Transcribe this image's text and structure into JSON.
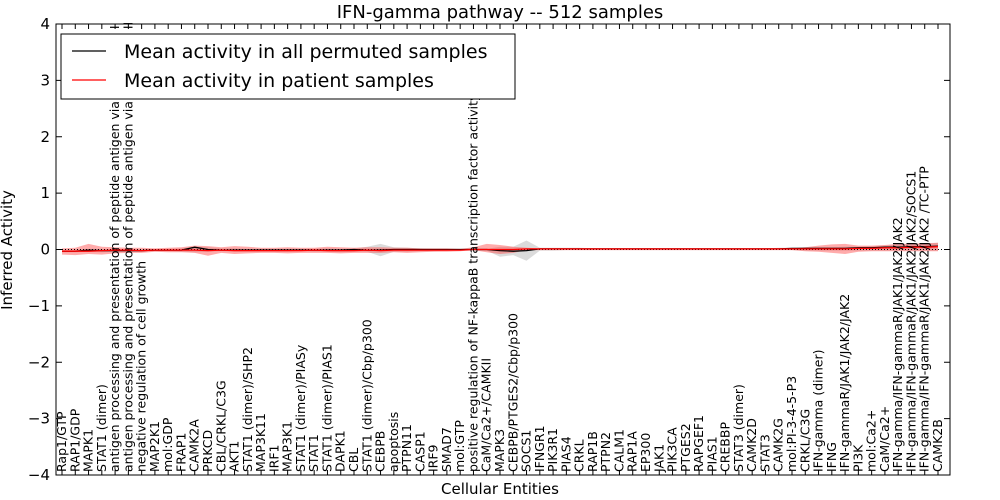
{
  "chart_data": {
    "type": "line",
    "title": "IFN-gamma pathway -- 512 samples",
    "xlabel": "Cellular Entities",
    "ylabel": "Inferred Activity",
    "ylim": [
      -4,
      4
    ],
    "yticks": [
      -4,
      -3,
      -2,
      -1,
      0,
      1,
      2,
      3,
      4
    ],
    "ytick_labels": [
      "−4",
      "−3",
      "−2",
      "−1",
      "0",
      "1",
      "2",
      "3",
      "4"
    ],
    "grid": false,
    "legend_position": "top-left",
    "categories": [
      "Rap1/GTP",
      "RAP1/GDP",
      "MAPK1",
      "STAT1 (dimer)",
      "antigen processing and presentation of peptide antigen via MHC class I",
      "antigen processing and presentation of peptide antigen via MHC class II",
      "negative regulation of cell growth",
      "MAP2K1",
      "mol:GDP",
      "FRAP1",
      "CAMK2A",
      "PRKCD",
      "CBL/CRKL/C3G",
      "AKT1",
      "STAT1 (dimer)/SHP2",
      "MAP3K11",
      "IRF1",
      "MAP3K1",
      "STAT1 (dimer)/PIASy",
      "STAT1",
      "STAT1 (dimer)/PIAS1",
      "DAPK1",
      "CBL",
      "STAT1 (dimer)/Cbp/p300",
      "CEBPB",
      "apoptosis",
      "PTPN11",
      "CASP1",
      "IRF9",
      "SMAD7",
      "mol:GTP",
      "positive regulation of NF-kappaB transcription factor activity",
      "CaM/Ca2+/CAMKII",
      "MAPK3",
      "CEBPB/PTGES2/Cbp/p300",
      "SOCS1",
      "IFNGR1",
      "PIK3R1",
      "PIAS4",
      "CRKL",
      "RAP1B",
      "PTPN2",
      "CALM1",
      "RAP1A",
      "EP300",
      "JAK1",
      "PIK3CA",
      "PTGES2",
      "RAPGEF1",
      "PIAS1",
      "CREBBP",
      "STAT3 (dimer)",
      "CAMK2D",
      "STAT3",
      "CAMK2G",
      "mol:PI-3-4-5-P3",
      "CRKL/C3G",
      "IFN-gamma (dimer)",
      "IFNG",
      "IFN-gammaR/JAK1/JAK2/JAK2",
      "PI3K",
      "mol:Ca2+",
      "CaM/Ca2+",
      "IFN-gamma/IFN-gammaR/JAK1/JAK2/JAK2",
      "IFN-gamma/IFN-gammaR/JAK1/JAK2/JAK2/SOCS1",
      "IFN-gamma/IFN-gammaR/JAK1/JAK2/JAK2 /TC-PTP",
      "CAMK2B"
    ],
    "series": [
      {
        "name": "Mean activity in all permuted samples",
        "color": "#000000",
        "values": [
          -0.03,
          -0.03,
          -0.01,
          -0.02,
          -0.02,
          -0.02,
          -0.02,
          -0.01,
          -0.01,
          -0.01,
          0.04,
          0.0,
          -0.01,
          -0.01,
          -0.01,
          -0.01,
          -0.01,
          -0.01,
          -0.01,
          -0.01,
          -0.01,
          -0.01,
          0.0,
          -0.01,
          -0.01,
          0.0,
          0.0,
          0.0,
          0.0,
          0.0,
          0.0,
          0.0,
          0.0,
          -0.02,
          -0.03,
          -0.02,
          0.01,
          0.01,
          0.01,
          0.01,
          0.01,
          0.01,
          0.01,
          0.01,
          0.01,
          0.01,
          0.01,
          0.01,
          0.01,
          0.01,
          0.01,
          0.01,
          0.01,
          0.01,
          0.01,
          0.02,
          0.02,
          0.02,
          0.02,
          0.02,
          0.03,
          0.03,
          0.04,
          0.04,
          0.05,
          0.05,
          0.06
        ]
      },
      {
        "name": "Mean activity in patient samples",
        "color": "#ff0000",
        "values": [
          -0.03,
          -0.03,
          -0.03,
          -0.02,
          -0.01,
          -0.01,
          -0.02,
          -0.01,
          -0.01,
          -0.01,
          -0.01,
          -0.02,
          -0.01,
          -0.02,
          -0.02,
          -0.02,
          -0.02,
          -0.02,
          -0.02,
          -0.01,
          -0.02,
          -0.02,
          -0.02,
          -0.01,
          -0.02,
          -0.01,
          -0.01,
          -0.01,
          -0.01,
          -0.01,
          -0.01,
          0.0,
          0.0,
          0.0,
          0.0,
          0.01,
          0.01,
          0.01,
          0.01,
          0.01,
          0.01,
          0.01,
          0.01,
          0.01,
          0.01,
          0.01,
          0.01,
          0.01,
          0.01,
          0.01,
          0.01,
          0.01,
          0.01,
          0.01,
          0.01,
          0.01,
          0.01,
          0.01,
          0.01,
          0.01,
          0.02,
          0.02,
          0.03,
          0.03,
          0.04,
          0.04,
          0.05
        ]
      }
    ],
    "band_permuted": {
      "color": "#999999",
      "lower": [
        -0.05,
        -0.05,
        -0.04,
        -0.05,
        -0.04,
        -0.04,
        -0.04,
        -0.03,
        -0.03,
        -0.04,
        -0.05,
        -0.04,
        -0.03,
        -0.04,
        -0.04,
        -0.04,
        -0.04,
        -0.04,
        -0.03,
        -0.04,
        -0.04,
        -0.05,
        -0.04,
        -0.04,
        -0.12,
        -0.04,
        -0.04,
        -0.03,
        -0.03,
        -0.02,
        -0.02,
        -0.02,
        -0.02,
        -0.13,
        -0.1,
        -0.2,
        -0.02,
        -0.02,
        -0.01,
        -0.01,
        -0.01,
        -0.01,
        -0.01,
        -0.01,
        -0.01,
        -0.01,
        -0.01,
        -0.01,
        -0.01,
        -0.01,
        -0.01,
        -0.01,
        -0.01,
        -0.01,
        -0.01,
        -0.01,
        -0.02,
        -0.02,
        -0.02,
        -0.02,
        -0.02,
        -0.02,
        -0.02,
        -0.02,
        -0.02,
        -0.02,
        -0.02
      ],
      "upper": [
        0.0,
        0.0,
        0.01,
        0.01,
        0.0,
        0.0,
        0.0,
        0.01,
        0.01,
        0.02,
        0.05,
        0.04,
        0.02,
        0.02,
        0.01,
        0.01,
        0.01,
        0.01,
        0.01,
        0.01,
        0.02,
        0.01,
        0.02,
        0.05,
        0.1,
        0.04,
        0.03,
        0.02,
        0.01,
        0.01,
        0.01,
        0.01,
        0.01,
        0.05,
        0.05,
        0.16,
        0.03,
        0.03,
        0.03,
        0.03,
        0.02,
        0.02,
        0.02,
        0.02,
        0.02,
        0.02,
        0.02,
        0.02,
        0.02,
        0.02,
        0.02,
        0.02,
        0.02,
        0.02,
        0.03,
        0.03,
        0.04,
        0.04,
        0.04,
        0.05,
        0.05,
        0.06,
        0.07,
        0.08,
        0.09,
        0.1,
        0.12
      ]
    },
    "band_patient": {
      "color": "#ff4444",
      "lower": [
        -0.09,
        -0.1,
        -0.08,
        -0.09,
        -0.07,
        -0.06,
        -0.06,
        -0.04,
        -0.05,
        -0.05,
        -0.06,
        -0.11,
        -0.06,
        -0.08,
        -0.07,
        -0.06,
        -0.06,
        -0.07,
        -0.06,
        -0.06,
        -0.06,
        -0.07,
        -0.06,
        -0.06,
        -0.06,
        -0.05,
        -0.06,
        -0.05,
        -0.04,
        -0.04,
        -0.03,
        -0.01,
        -0.05,
        -0.08,
        -0.06,
        -0.01,
        -0.01,
        -0.01,
        -0.01,
        -0.01,
        -0.01,
        -0.01,
        -0.01,
        -0.01,
        -0.01,
        -0.01,
        -0.01,
        -0.01,
        -0.01,
        -0.01,
        -0.01,
        -0.01,
        -0.01,
        -0.01,
        -0.01,
        -0.01,
        -0.03,
        -0.04,
        -0.06,
        -0.08,
        -0.04,
        -0.03,
        -0.03,
        -0.03,
        -0.03,
        -0.03,
        -0.03
      ],
      "upper": [
        0.02,
        0.03,
        0.1,
        0.05,
        0.04,
        0.03,
        0.03,
        0.02,
        0.03,
        0.04,
        0.07,
        0.06,
        0.04,
        0.06,
        0.05,
        0.03,
        0.03,
        0.04,
        0.03,
        0.03,
        0.05,
        0.04,
        0.03,
        0.04,
        0.04,
        0.03,
        0.03,
        0.02,
        0.02,
        0.02,
        0.01,
        0.04,
        0.1,
        0.08,
        0.05,
        0.03,
        0.02,
        0.02,
        0.02,
        0.02,
        0.02,
        0.02,
        0.02,
        0.02,
        0.02,
        0.02,
        0.02,
        0.02,
        0.02,
        0.02,
        0.02,
        0.02,
        0.02,
        0.02,
        0.02,
        0.02,
        0.04,
        0.07,
        0.09,
        0.1,
        0.07,
        0.07,
        0.08,
        0.1,
        0.1,
        0.11,
        0.12
      ]
    }
  }
}
